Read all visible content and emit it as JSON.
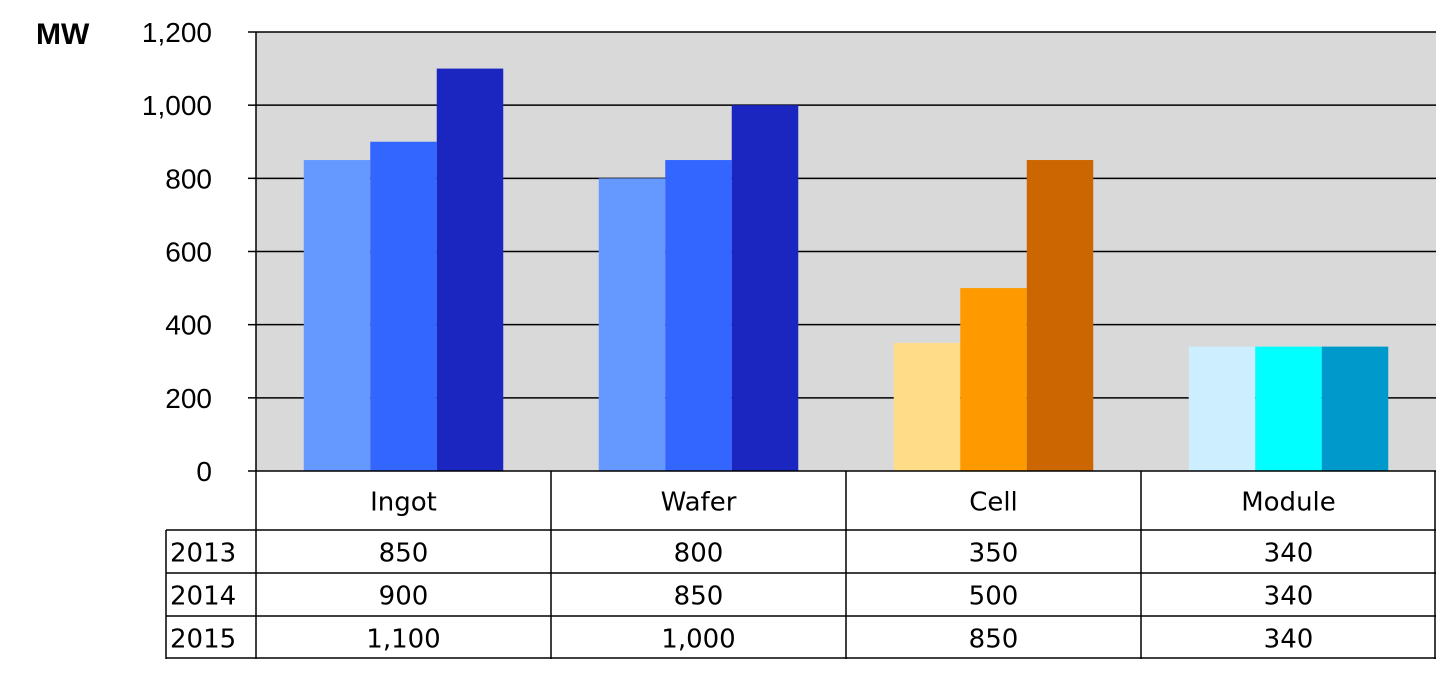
{
  "chart_data": {
    "type": "bar",
    "unit_label": "MW",
    "ylim": [
      0,
      1200
    ],
    "yticks": [
      0,
      200,
      400,
      600,
      800,
      1000,
      1200
    ],
    "ytick_labels": [
      "0",
      "200",
      "400",
      "600",
      "800",
      "1,000",
      "1,200"
    ],
    "grid": true,
    "categories": [
      "Ingot",
      "Wafer",
      "Cell",
      "Module"
    ],
    "series": [
      {
        "name": "2013",
        "values": [
          850,
          800,
          350,
          340
        ]
      },
      {
        "name": "2014",
        "values": [
          900,
          850,
          500,
          340
        ]
      },
      {
        "name": "2015",
        "values": [
          1100,
          1000,
          850,
          340
        ]
      }
    ],
    "data_table": {
      "rows": [
        {
          "label": "2013",
          "cells": [
            "850",
            "800",
            "350",
            "340"
          ]
        },
        {
          "label": "2014",
          "cells": [
            "900",
            "850",
            "500",
            "340"
          ]
        },
        {
          "label": "2015",
          "cells": [
            "1,100",
            "1,000",
            "850",
            "340"
          ]
        }
      ]
    },
    "colors": {
      "plot_background": "#d9d9d9",
      "bars": [
        [
          "#6699ff",
          "#3366ff",
          "#1a26bf"
        ],
        [
          "#6699ff",
          "#3366ff",
          "#1a26bf"
        ],
        [
          "#ffdd88",
          "#ff9900",
          "#cc6600"
        ],
        [
          "#cceeff",
          "#00ffff",
          "#0099cc"
        ]
      ]
    }
  }
}
